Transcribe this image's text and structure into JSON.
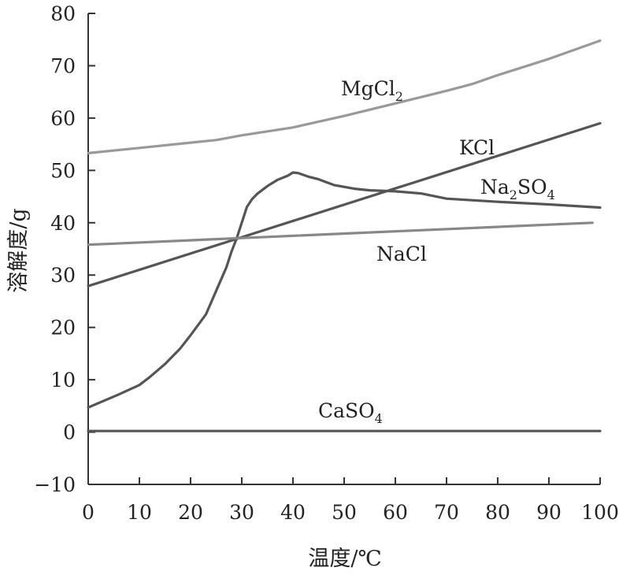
{
  "chart_data": {
    "type": "line",
    "title": "",
    "xlabel": "温度/℃",
    "ylabel": "溶解度/g",
    "xlim": [
      0,
      100
    ],
    "ylim": [
      -10,
      80
    ],
    "x_ticks": [
      0,
      10,
      20,
      30,
      40,
      50,
      60,
      70,
      80,
      90,
      100
    ],
    "y_ticks": [
      -10,
      0,
      10,
      20,
      30,
      40,
      50,
      60,
      70,
      80
    ],
    "x_tick_labels": [
      "0",
      "10",
      "20",
      "30",
      "40",
      "50",
      "60",
      "70",
      "80",
      "90",
      "100"
    ],
    "y_tick_labels": [
      "−10",
      "0",
      "10",
      "20",
      "30",
      "40",
      "50",
      "60",
      "70",
      "80"
    ],
    "grid": false,
    "legend": "inline labels",
    "series": [
      {
        "name": "MgCl₂",
        "label_main": "MgCl",
        "label_sub": "2",
        "label_post": "",
        "label_sub2": "",
        "color": "#999999",
        "x": [
          0,
          10,
          20,
          25,
          30,
          40,
          50,
          60,
          70,
          75,
          80,
          90,
          100
        ],
        "y": [
          53.3,
          54.3,
          55.3,
          55.8,
          56.7,
          58.2,
          60.4,
          62.8,
          65.2,
          66.5,
          68.2,
          71.3,
          74.8
        ]
      },
      {
        "name": "KCl",
        "label_main": "KCl",
        "label_sub": "",
        "label_post": "",
        "label_sub2": "",
        "color": "#555555",
        "x": [
          0,
          100
        ],
        "y": [
          27.9,
          59.0
        ]
      },
      {
        "name": "Na₂SO₄",
        "label_main": "Na",
        "label_sub": "2",
        "label_post": "SO",
        "label_sub2": "4",
        "color": "#555555",
        "x": [
          0,
          6,
          10,
          12,
          15,
          18,
          20,
          23,
          25,
          27,
          28,
          29,
          30,
          31,
          32,
          33,
          35,
          37,
          39,
          40,
          41,
          43,
          45,
          48,
          52,
          55,
          60,
          65,
          70,
          80,
          90,
          100
        ],
        "y": [
          4.7,
          7.2,
          9.0,
          10.5,
          13.0,
          16.0,
          18.5,
          22.5,
          27.0,
          31.5,
          34.5,
          37.0,
          40.0,
          43.0,
          44.5,
          45.5,
          47.0,
          48.2,
          49.0,
          49.6,
          49.5,
          48.8,
          48.3,
          47.2,
          46.5,
          46.2,
          46.0,
          45.6,
          44.6,
          44.0,
          43.5,
          42.9
        ]
      },
      {
        "name": "NaCl",
        "label_main": "NaCl",
        "label_sub": "",
        "label_post": "",
        "label_sub2": "",
        "color": "#888888",
        "x": [
          0,
          98.5
        ],
        "y": [
          35.8,
          40.0
        ]
      },
      {
        "name": "CaSO₄",
        "label_main": "CaSO",
        "label_sub": "4",
        "label_post": "",
        "label_sub2": "",
        "color": "#555555",
        "x": [
          0,
          100
        ],
        "y": [
          0.2,
          0.2
        ]
      }
    ]
  }
}
